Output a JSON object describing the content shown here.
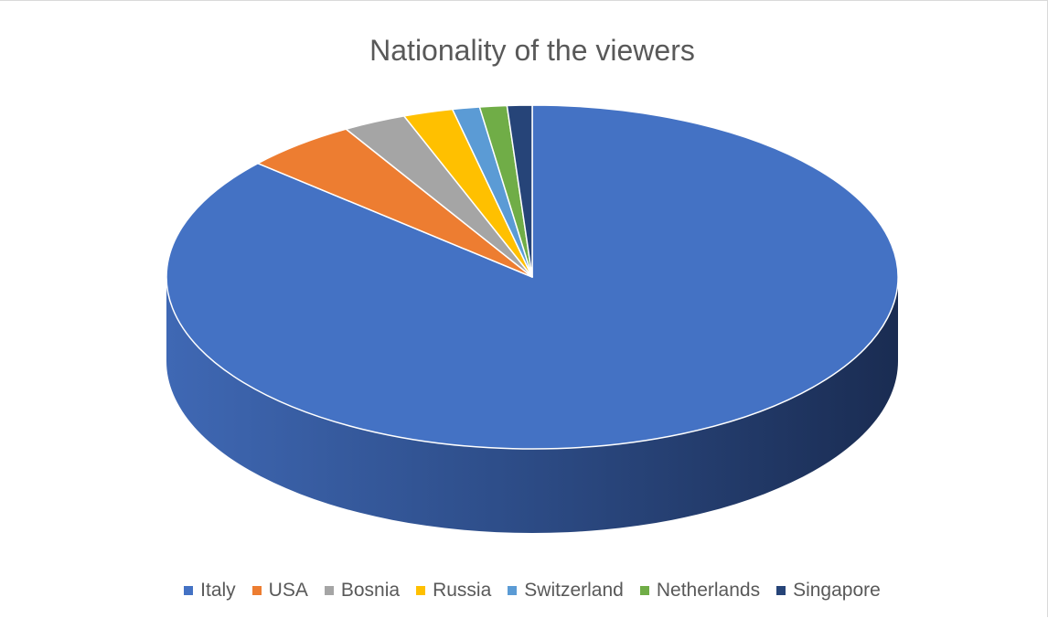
{
  "chart_data": {
    "type": "pie",
    "title": "Nationality of the viewers",
    "legend_position": "bottom",
    "categories": [
      "Italy",
      "USA",
      "Bosnia",
      "Russia",
      "Switzerland",
      "Netherlands",
      "Singapore"
    ],
    "values": [
      86.5,
      5.0,
      2.8,
      2.2,
      1.2,
      1.2,
      1.1
    ],
    "colors": [
      "#4472C4",
      "#ED7D31",
      "#A5A5A5",
      "#FFC000",
      "#5B9BD5",
      "#70AD47",
      "#264478"
    ],
    "style": "3d"
  }
}
